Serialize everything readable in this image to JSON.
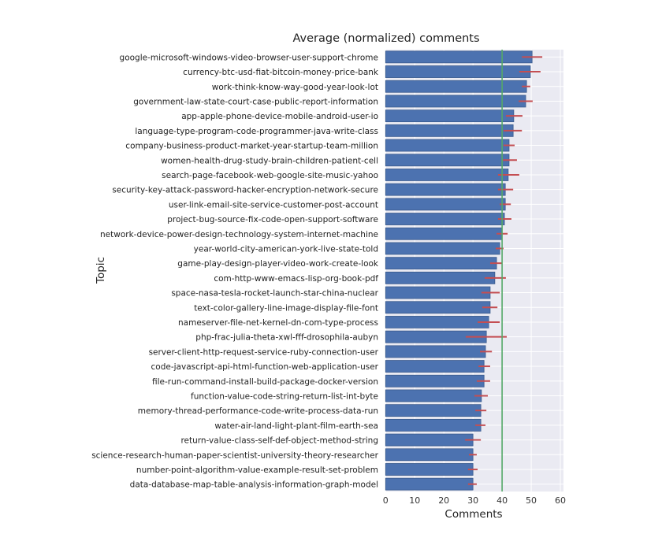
{
  "chart_data": {
    "type": "bar",
    "orientation": "horizontal",
    "title": "Average (normalized) comments",
    "xlabel": "Comments",
    "ylabel": "Topic",
    "xlim": [
      0,
      60
    ],
    "xticks": [
      0,
      10,
      20,
      30,
      40,
      50,
      60
    ],
    "grid": true,
    "reference_line": {
      "x": 40,
      "color": "#55A868"
    },
    "colors": {
      "bar": "#4C72B0",
      "error": "#C44E52",
      "background": "#EAEAF2"
    },
    "categories": [
      "google-microsoft-windows-video-browser-user-support-chrome",
      "currency-btc-usd-fiat-bitcoin-money-price-bank",
      "work-think-know-way-good-year-look-lot",
      "government-law-state-court-case-public-report-information",
      "app-apple-phone-device-mobile-android-user-io",
      "language-type-program-code-programmer-java-write-class",
      "company-business-product-market-year-startup-team-million",
      "women-health-drug-study-brain-children-patient-cell",
      "search-page-facebook-web-google-site-music-yahoo",
      "security-key-attack-password-hacker-encryption-network-secure",
      "user-link-email-site-service-customer-post-account",
      "project-bug-source-fix-code-open-support-software",
      "network-device-power-design-technology-system-internet-machine",
      "year-world-city-american-york-live-state-told",
      "game-play-design-player-video-work-create-look",
      "com-http-www-emacs-lisp-org-book-pdf",
      "space-nasa-tesla-rocket-launch-star-china-nuclear",
      "text-color-gallery-line-image-display-file-font",
      "nameserver-file-net-kernel-dn-com-type-process",
      "php-frac-julia-theta-xwl-fff-drosophila-aubyn",
      "server-client-http-request-service-ruby-connection-user",
      "code-javascript-api-html-function-web-application-user",
      "file-run-command-install-build-package-docker-version",
      "function-value-code-string-return-list-int-byte",
      "memory-thread-performance-code-write-process-data-run",
      "water-air-land-light-plant-film-earth-sea",
      "return-value-class-self-def-object-method-string",
      "science-research-human-paper-scientist-university-theory-researcher",
      "number-point-algorithm-value-example-result-set-problem",
      "data-database-map-table-analysis-information-graph-model"
    ],
    "values": [
      50.3,
      49.7,
      48.4,
      48.1,
      44.0,
      43.8,
      42.4,
      42.4,
      42.1,
      41.1,
      41.1,
      40.8,
      39.9,
      39.2,
      38.1,
      37.5,
      35.9,
      35.9,
      35.4,
      34.6,
      34.3,
      33.8,
      33.8,
      32.9,
      32.7,
      32.7,
      30.0,
      30.0,
      30.0,
      30.0
    ],
    "error_low": [
      46.8,
      45.9,
      46.8,
      45.7,
      41.3,
      40.5,
      40.5,
      40.3,
      38.6,
      38.6,
      39.2,
      38.6,
      38.1,
      37.8,
      35.9,
      34.0,
      32.9,
      33.2,
      31.6,
      27.5,
      32.4,
      31.9,
      31.3,
      30.5,
      30.8,
      30.8,
      27.3,
      28.6,
      28.3,
      28.3
    ],
    "error_high": [
      53.8,
      53.2,
      49.7,
      50.5,
      47.0,
      46.8,
      44.3,
      45.1,
      45.9,
      43.8,
      43.0,
      43.2,
      41.9,
      40.5,
      39.9,
      41.3,
      39.2,
      38.4,
      39.2,
      41.6,
      36.5,
      35.9,
      35.9,
      35.1,
      34.6,
      34.3,
      32.7,
      31.3,
      31.6,
      31.3
    ]
  }
}
